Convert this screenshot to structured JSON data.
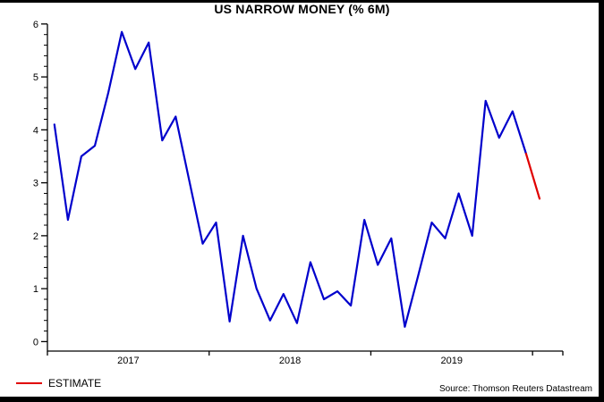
{
  "header": {
    "title": "US NARROW MONEY (% 6M)"
  },
  "legend": {
    "label": "ESTIMATE",
    "line_color": "#e00000"
  },
  "footer": {
    "source": "Source: Thomson Reuters Datastream"
  },
  "chart_data": {
    "type": "line",
    "title": "US NARROW MONEY (% 6M)",
    "xlabel": "",
    "ylabel": "",
    "ylim": [
      0,
      6
    ],
    "yticks": [
      0,
      1,
      2,
      3,
      4,
      5,
      6
    ],
    "y_minor_step": 0.2,
    "grid": false,
    "legend_position": "bottom-left",
    "x_year_labels": [
      "2017",
      "2018",
      "2019"
    ],
    "months": [
      "Jan 2017",
      "Feb 2017",
      "Mar 2017",
      "Apr 2017",
      "May 2017",
      "Jun 2017",
      "Jul 2017",
      "Aug 2017",
      "Sep 2017",
      "Oct 2017",
      "Nov 2017",
      "Dec 2017",
      "Jan 2018",
      "Feb 2018",
      "Mar 2018",
      "Apr 2018",
      "May 2018",
      "Jun 2018",
      "Jul 2018",
      "Aug 2018",
      "Sep 2018",
      "Oct 2018",
      "Nov 2018",
      "Dec 2018",
      "Jan 2019",
      "Feb 2019",
      "Mar 2019",
      "Apr 2019",
      "May 2019",
      "Jun 2019",
      "Jul 2019",
      "Aug 2019",
      "Sep 2019",
      "Oct 2019",
      "Nov 2019",
      "Dec 2019",
      "Jan 2020"
    ],
    "values": [
      4.1,
      2.3,
      3.5,
      3.7,
      4.7,
      5.85,
      5.15,
      5.65,
      3.8,
      4.25,
      3.05,
      1.85,
      2.25,
      0.38,
      2.0,
      1.0,
      0.4,
      0.9,
      0.35,
      1.5,
      0.8,
      0.95,
      0.68,
      2.3,
      1.45,
      1.95,
      0.28,
      1.25,
      2.25,
      1.95,
      2.8,
      2.0,
      4.55,
      3.85,
      4.35,
      3.55,
      2.7
    ],
    "estimate_start_index": 35,
    "line_color": "#0000cc",
    "estimate_color": "#e00000"
  }
}
